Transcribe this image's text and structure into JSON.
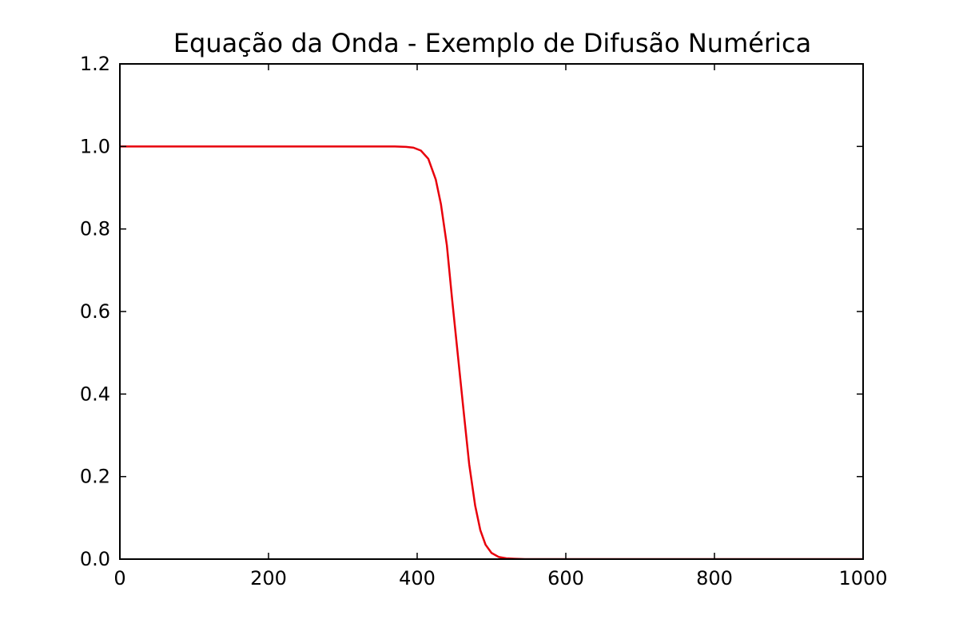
{
  "chart_data": {
    "type": "line",
    "title": "Equação da Onda - Exemplo de Difusão Numérica",
    "xlabel": "",
    "ylabel": "",
    "xlim": [
      0,
      1000
    ],
    "ylim": [
      0,
      1.2
    ],
    "x_ticks": [
      "0",
      "200",
      "400",
      "600",
      "800",
      "1000"
    ],
    "y_ticks": [
      "0.0",
      "0.2",
      "0.4",
      "0.6",
      "0.8",
      "1.0",
      "1.2"
    ],
    "grid": false,
    "legend": "none",
    "series": [
      {
        "color": "#e8000b",
        "x": [
          0,
          100,
          200,
          300,
          370,
          385,
          395,
          405,
          415,
          425,
          432,
          440,
          447,
          455,
          463,
          470,
          478,
          485,
          492,
          500,
          510,
          520,
          530,
          545,
          600,
          700,
          800,
          900,
          1000
        ],
        "y": [
          1.0,
          1.0,
          1.0,
          1.0,
          1.0,
          0.999,
          0.997,
          0.99,
          0.97,
          0.92,
          0.86,
          0.76,
          0.63,
          0.49,
          0.35,
          0.23,
          0.13,
          0.07,
          0.035,
          0.015,
          0.005,
          0.002,
          0.001,
          0.0,
          0.0,
          0.0,
          0.0,
          0.0,
          0.0
        ]
      }
    ]
  }
}
